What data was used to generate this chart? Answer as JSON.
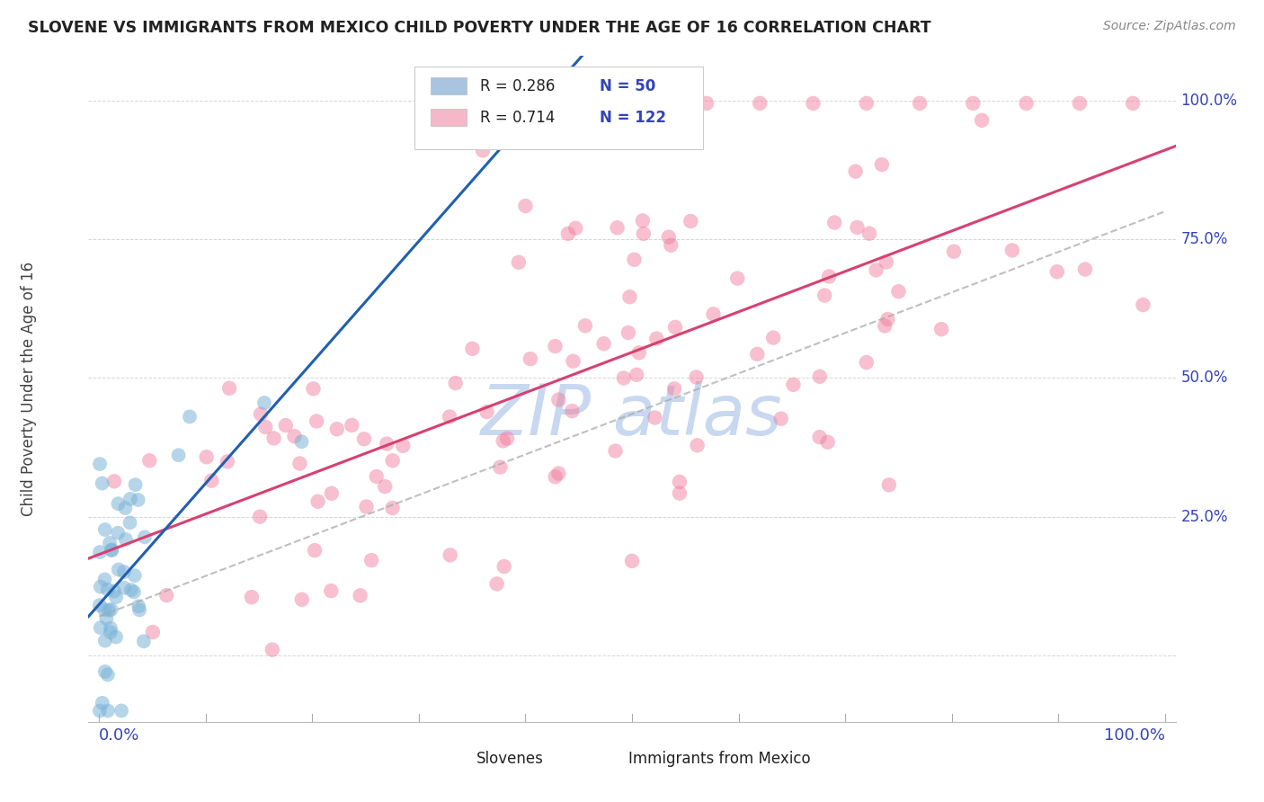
{
  "title": "SLOVENE VS IMMIGRANTS FROM MEXICO CHILD POVERTY UNDER THE AGE OF 16 CORRELATION CHART",
  "source": "Source: ZipAtlas.com",
  "ylabel": "Child Poverty Under the Age of 16",
  "legend_entries": [
    {
      "r_label": "R = 0.286",
      "n_label": "N = 50",
      "sq_color": "#a8c4e0"
    },
    {
      "r_label": "R = 0.714",
      "n_label": "N = 122",
      "sq_color": "#f4b8c8"
    }
  ],
  "slovene_color": "#7ab3d8",
  "mexico_color": "#f080a0",
  "slovene_line_color": "#2060b0",
  "mexico_line_color": "#d84070",
  "dashed_line_color": "#aaaaaa",
  "watermark_color": "#c8d8f0",
  "background_color": "#ffffff",
  "grid_color": "#cccccc",
  "title_color": "#222222",
  "axis_label_color": "#3344bb",
  "source_color": "#888888",
  "figsize": [
    14.06,
    8.92
  ],
  "dpi": 100,
  "xlim": [
    -0.01,
    1.01
  ],
  "ylim": [
    -0.12,
    1.08
  ]
}
